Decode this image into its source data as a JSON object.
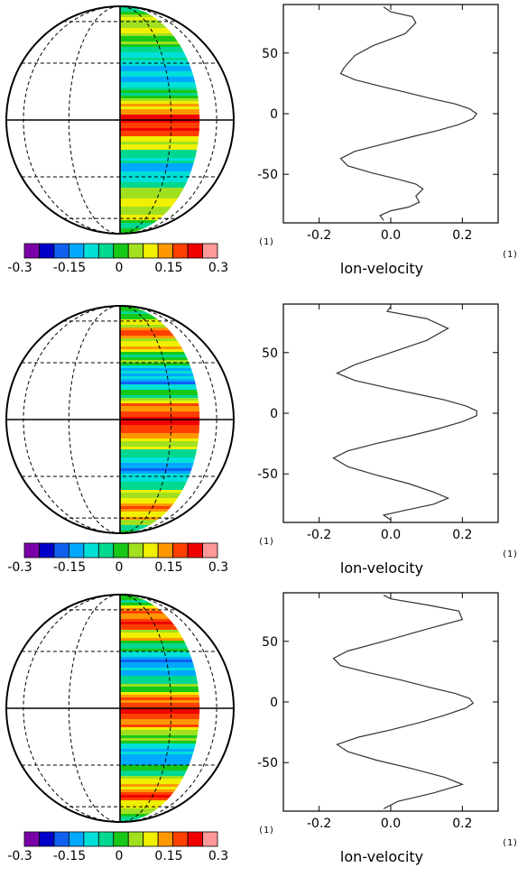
{
  "colorbar": {
    "colors": [
      "#7a00a8",
      "#0000c8",
      "#1060f0",
      "#00a8ff",
      "#00e0d8",
      "#00d890",
      "#18c818",
      "#a0e020",
      "#f0f000",
      "#ff9800",
      "#ff4000",
      "#f00000",
      "#ff9898"
    ],
    "tick_labels": [
      "-0.3",
      "-0.15",
      "0",
      "0.15",
      "0.3"
    ]
  },
  "chart_data": [
    {
      "type": "line",
      "xlabel": "lon-velocity",
      "x_unit": "(1)",
      "y_unit": "(1)",
      "xlim": [
        -0.3,
        0.3
      ],
      "ylim": [
        -90,
        90
      ],
      "x_ticks": [
        "-0.2",
        "0.0",
        "0.2"
      ],
      "y_ticks": [
        "50",
        "0",
        "-50"
      ],
      "series": [
        {
          "x": [
            -0.02,
            0.0,
            0.06,
            0.07,
            0.04,
            -0.05,
            -0.1,
            -0.13,
            -0.14,
            -0.1,
            -0.02,
            0.05,
            0.12,
            0.18,
            0.22,
            0.24,
            0.23,
            0.19,
            0.13,
            0.06,
            -0.02,
            -0.1,
            -0.14,
            -0.12,
            -0.05,
            0.02,
            0.07,
            0.09,
            0.07,
            0.08,
            0.05,
            0.0,
            -0.03,
            -0.02
          ],
          "y": [
            88,
            84,
            80,
            75,
            66,
            56,
            48,
            38,
            33,
            28,
            22,
            17,
            12,
            8,
            4,
            0,
            -4,
            -9,
            -14,
            -19,
            -25,
            -31,
            -37,
            -43,
            -49,
            -54,
            -58,
            -62,
            -68,
            -73,
            -77,
            -80,
            -84,
            -88
          ]
        }
      ]
    },
    {
      "type": "line",
      "xlabel": "lon-velocity",
      "x_unit": "(1)",
      "y_unit": "(1)",
      "xlim": [
        -0.3,
        0.3
      ],
      "ylim": [
        -90,
        90
      ],
      "x_ticks": [
        "-0.2",
        "0.0",
        "0.2"
      ],
      "y_ticks": [
        "50",
        "0",
        "-50"
      ],
      "series": [
        {
          "x": [
            0.0,
            -0.01,
            0.1,
            0.16,
            0.1,
            0.0,
            -0.1,
            -0.15,
            -0.1,
            -0.01,
            0.07,
            0.15,
            0.21,
            0.24,
            0.24,
            0.2,
            0.13,
            0.05,
            -0.04,
            -0.12,
            -0.16,
            -0.12,
            -0.04,
            0.05,
            0.12,
            0.16,
            0.12,
            0.04,
            -0.02,
            0.0
          ],
          "y": [
            88,
            84,
            78,
            70,
            60,
            50,
            40,
            33,
            27,
            21,
            16,
            11,
            6,
            2,
            -2,
            -7,
            -13,
            -19,
            -25,
            -31,
            -37,
            -44,
            -51,
            -58,
            -65,
            -70,
            -75,
            -80,
            -84,
            -88
          ]
        }
      ]
    },
    {
      "type": "line",
      "xlabel": "lon-velocity",
      "x_unit": "(1)",
      "y_unit": "(1)",
      "xlim": [
        -0.3,
        0.3
      ],
      "ylim": [
        -90,
        90
      ],
      "x_ticks": [
        "-0.2",
        "0.0",
        "0.2"
      ],
      "y_ticks": [
        "50",
        "0",
        "-50"
      ],
      "series": [
        {
          "x": [
            -0.02,
            0.0,
            0.1,
            0.19,
            0.2,
            0.1,
            -0.02,
            -0.12,
            -0.16,
            -0.14,
            -0.06,
            0.03,
            0.11,
            0.18,
            0.22,
            0.23,
            0.21,
            0.15,
            0.08,
            0.0,
            -0.09,
            -0.15,
            -0.12,
            -0.04,
            0.06,
            0.15,
            0.2,
            0.12,
            0.02,
            -0.02
          ],
          "y": [
            88,
            85,
            80,
            75,
            68,
            60,
            50,
            42,
            36,
            30,
            24,
            18,
            12,
            7,
            3,
            -1,
            -5,
            -11,
            -17,
            -23,
            -29,
            -35,
            -41,
            -48,
            -55,
            -62,
            -68,
            -75,
            -82,
            -88
          ]
        }
      ]
    }
  ]
}
